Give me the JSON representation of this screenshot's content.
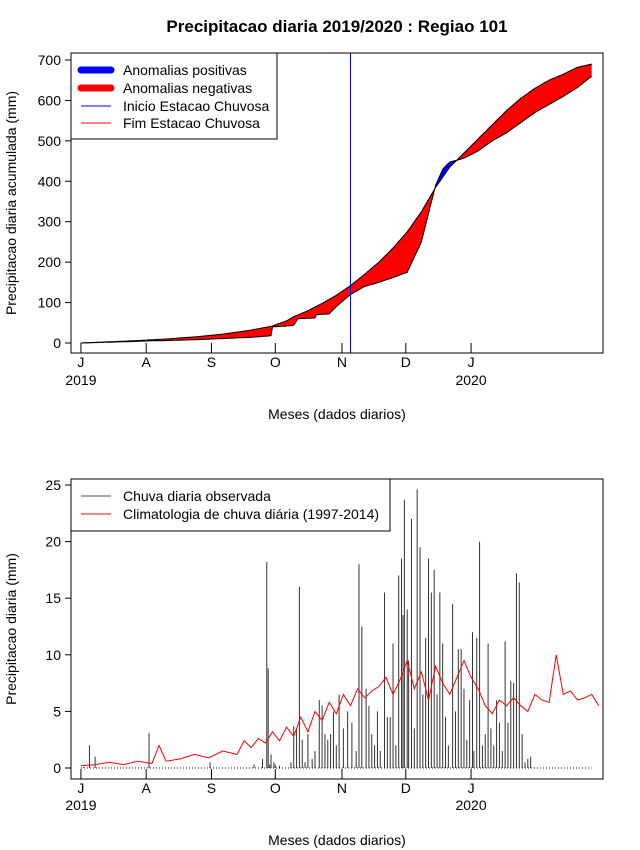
{
  "chart_data": [
    {
      "type": "area",
      "title": "Precipitacao diaria 2019/2020 : Regiao 101",
      "xlabel": "Meses (dados diarios)",
      "ylabel": "Precipitacao diaria acumulada (mm)",
      "ylim": [
        0,
        700
      ],
      "yticks": [
        0,
        100,
        200,
        300,
        400,
        500,
        600,
        700
      ],
      "xlim_days": [
        -7,
        368
      ],
      "month_ticks": [
        {
          "label": "J",
          "day": 0
        },
        {
          "label": "A",
          "day": 46
        },
        {
          "label": "S",
          "day": 92
        },
        {
          "label": "O",
          "day": 137
        },
        {
          "label": "N",
          "day": 184
        },
        {
          "label": "D",
          "day": 229
        },
        {
          "label": "J",
          "day": 275
        }
      ],
      "year_labels": [
        {
          "label": "2019",
          "day": 0
        },
        {
          "label": "2020",
          "day": 275
        }
      ],
      "rainy_season_start_day": 190,
      "legend": {
        "position": "top-left",
        "items": [
          {
            "label": "Anomalias positivas",
            "color": "#0000ff",
            "style": "thick"
          },
          {
            "label": "Anomalias negativas",
            "color": "#ff0000",
            "style": "thick"
          },
          {
            "label": "Inicio Estacao Chuvosa",
            "color": "#0000ff",
            "style": "thin"
          },
          {
            "label": "Fim Estacao Chuvosa",
            "color": "#ff0000",
            "style": "thin"
          }
        ]
      },
      "colors": {
        "positive": "#0000ff",
        "negative": "#ff0000",
        "start_line": "#0000ff",
        "border": "#000000"
      },
      "climatology_cumulative": {
        "days": [
          0,
          20,
          40,
          60,
          80,
          100,
          120,
          135,
          145,
          150,
          160,
          170,
          180,
          190,
          200,
          210,
          220,
          230,
          240,
          250,
          260,
          270,
          280,
          290,
          300,
          310,
          320,
          330,
          340,
          350,
          360
        ],
        "values": [
          0,
          3,
          6,
          10,
          15,
          22,
          32,
          42,
          55,
          65,
          80,
          98,
          118,
          142,
          170,
          200,
          235,
          275,
          325,
          385,
          435,
          470,
          505,
          540,
          575,
          605,
          630,
          650,
          665,
          682,
          690
        ]
      },
      "observed_cumulative": {
        "days": [
          0,
          20,
          40,
          45,
          60,
          80,
          100,
          120,
          134,
          135,
          145,
          150,
          153,
          165,
          166,
          175,
          180,
          190,
          200,
          210,
          220,
          230,
          240,
          250,
          255,
          260,
          265,
          270,
          280,
          285,
          290,
          300,
          310,
          320,
          330,
          340,
          350,
          360
        ],
        "values": [
          0,
          2,
          4,
          5,
          6,
          8,
          11,
          14,
          18,
          40,
          42,
          44,
          60,
          62,
          70,
          72,
          90,
          120,
          140,
          150,
          162,
          175,
          250,
          390,
          430,
          448,
          452,
          457,
          475,
          488,
          500,
          520,
          545,
          570,
          590,
          610,
          632,
          660
        ]
      }
    },
    {
      "type": "bar+line",
      "xlabel": "Meses (dados diarios)",
      "ylabel": "Precipitacao diaria (mm)",
      "ylim": [
        0,
        25
      ],
      "yticks": [
        0,
        5,
        10,
        15,
        20,
        25
      ],
      "xlim_days": [
        -7,
        368
      ],
      "month_ticks": [
        {
          "label": "J",
          "day": 0
        },
        {
          "label": "A",
          "day": 46
        },
        {
          "label": "S",
          "day": 92
        },
        {
          "label": "O",
          "day": 137
        },
        {
          "label": "N",
          "day": 184
        },
        {
          "label": "D",
          "day": 229
        },
        {
          "label": "J",
          "day": 275
        }
      ],
      "year_labels": [
        {
          "label": "2019",
          "day": 0
        },
        {
          "label": "2020",
          "day": 275
        }
      ],
      "legend": {
        "position": "top-left",
        "items": [
          {
            "label": "Chuva diaria observada",
            "color": "#555555"
          },
          {
            "label": "Climatologia de chuva diária (1997-2014)",
            "color": "#ff0000"
          }
        ]
      },
      "observed_daily": {
        "days": [
          2,
          6,
          10,
          48,
          91,
          122,
          128,
          131,
          132,
          133,
          134,
          136,
          137,
          140,
          148,
          150,
          152,
          154,
          156,
          158,
          160,
          163,
          165,
          168,
          170,
          172,
          174,
          176,
          178,
          180,
          182,
          185,
          188,
          191,
          194,
          196,
          198,
          201,
          203,
          205,
          207,
          209,
          211,
          214,
          216,
          218,
          220,
          222,
          224,
          226,
          227,
          228,
          230,
          231,
          233,
          235,
          237,
          239,
          241,
          243,
          245,
          247,
          249,
          251,
          253,
          255,
          257,
          259,
          262,
          264,
          266,
          268,
          270,
          272,
          274,
          276,
          277,
          279,
          281,
          283,
          285,
          287,
          289,
          291,
          293,
          295,
          297,
          299,
          301,
          303,
          305,
          307,
          309,
          311,
          313,
          315,
          317
        ],
        "values": [
          0.1,
          2.0,
          1.0,
          3.1,
          0.5,
          0.3,
          0.8,
          18.2,
          8.8,
          0.3,
          1.2,
          0.5,
          0.3,
          0.2,
          0.5,
          3.7,
          3.5,
          16.0,
          2.5,
          0.5,
          3.0,
          0.8,
          1.5,
          6.0,
          5.5,
          3.0,
          2.5,
          3.0,
          5.0,
          2.0,
          6.5,
          3.5,
          5.0,
          4.0,
          1.5,
          18.0,
          12.5,
          7.0,
          5.5,
          3.0,
          2.0,
          5.0,
          1.5,
          15.5,
          4.5,
          4.5,
          11.0,
          2.0,
          17.0,
          18.5,
          13.5,
          23.7,
          14.0,
          9.5,
          22.0,
          3.5,
          24.6,
          19.5,
          6.5,
          11.5,
          18.5,
          15.5,
          17.5,
          6.5,
          15.5,
          11.0,
          4.5,
          2.0,
          14.5,
          5.0,
          10.5,
          10.5,
          7.0,
          2.5,
          6.0,
          12.0,
          1.5,
          11.5,
          20.0,
          2.0,
          3.0,
          11.0,
          3.5,
          2.0,
          6.0,
          4.0,
          1.5,
          11.2,
          4.0,
          7.7,
          7.5,
          17.2,
          16.4,
          3.0,
          0.5,
          0.8,
          1.0
        ]
      },
      "climatology_daily": {
        "days": [
          0,
          10,
          20,
          30,
          40,
          50,
          55,
          60,
          70,
          80,
          90,
          100,
          110,
          115,
          120,
          125,
          130,
          135,
          140,
          145,
          150,
          155,
          160,
          165,
          170,
          175,
          180,
          185,
          190,
          195,
          200,
          205,
          210,
          215,
          220,
          225,
          230,
          235,
          240,
          245,
          250,
          255,
          260,
          265,
          270,
          275,
          280,
          285,
          290,
          295,
          300,
          305,
          310,
          315,
          320,
          325,
          330,
          335,
          340,
          345,
          350,
          355,
          360,
          365
        ],
        "values": [
          0.2,
          0.3,
          0.5,
          0.3,
          0.6,
          0.4,
          2.0,
          0.6,
          0.8,
          1.2,
          0.9,
          1.5,
          1.2,
          2.4,
          1.8,
          2.6,
          2.2,
          3.2,
          2.4,
          3.6,
          2.8,
          4.5,
          3.2,
          5.0,
          4.2,
          5.8,
          4.8,
          6.5,
          5.5,
          7.0,
          6.2,
          6.8,
          7.2,
          8.0,
          6.5,
          7.8,
          9.5,
          7.0,
          8.5,
          6.0,
          9.0,
          7.5,
          6.5,
          8.0,
          9.5,
          8.0,
          7.0,
          5.5,
          4.8,
          6.0,
          5.5,
          6.2,
          5.5,
          5.0,
          6.5,
          6.0,
          5.8,
          10.0,
          6.5,
          6.8,
          6.0,
          6.2,
          6.5,
          5.5
        ]
      }
    }
  ]
}
